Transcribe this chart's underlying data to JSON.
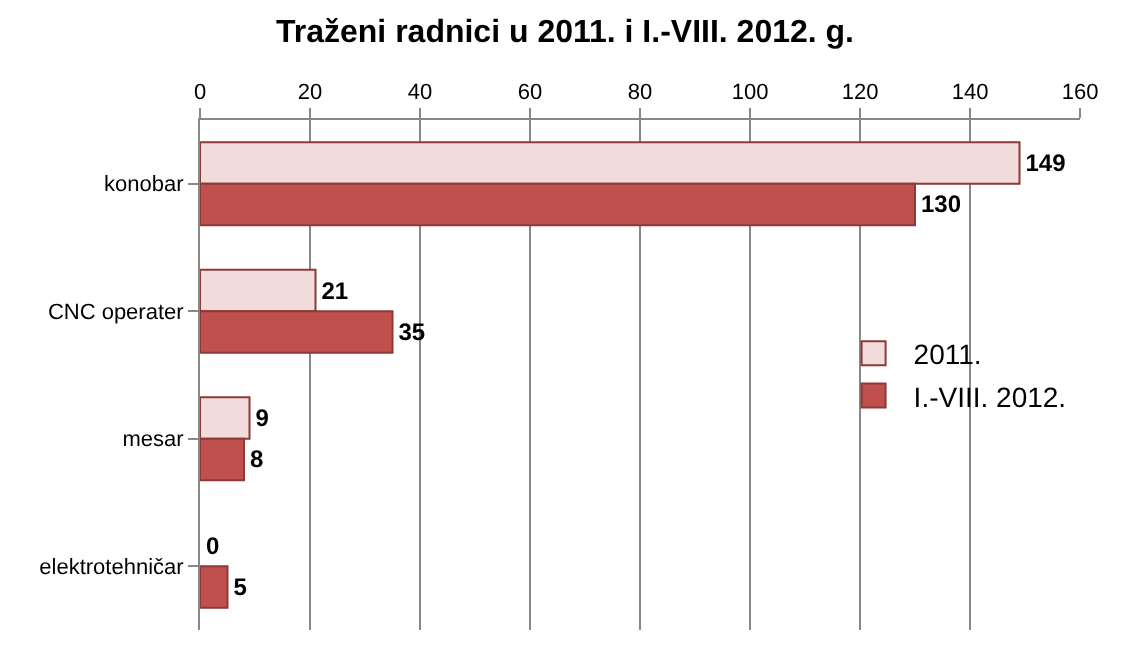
{
  "chart_data": {
    "type": "bar",
    "title": "Traženi radnici u 2011. i I.-VIII. 2012. g.",
    "orientation": "horizontal",
    "categories": [
      "konobar",
      "CNC operater",
      "mesar",
      "elektrotehničar"
    ],
    "series": [
      {
        "name": "2011.",
        "color": "#f2dcdb",
        "values": [
          149,
          21,
          9,
          0
        ]
      },
      {
        "name": "I.-VIII. 2012.",
        "color": "#c0504d",
        "values": [
          130,
          35,
          8,
          5
        ]
      }
    ],
    "xlim": [
      0,
      160
    ],
    "xticks": [
      0,
      20,
      40,
      60,
      80,
      100,
      120,
      140,
      160
    ],
    "grid": "x",
    "legend": "right",
    "data_labels": true
  }
}
